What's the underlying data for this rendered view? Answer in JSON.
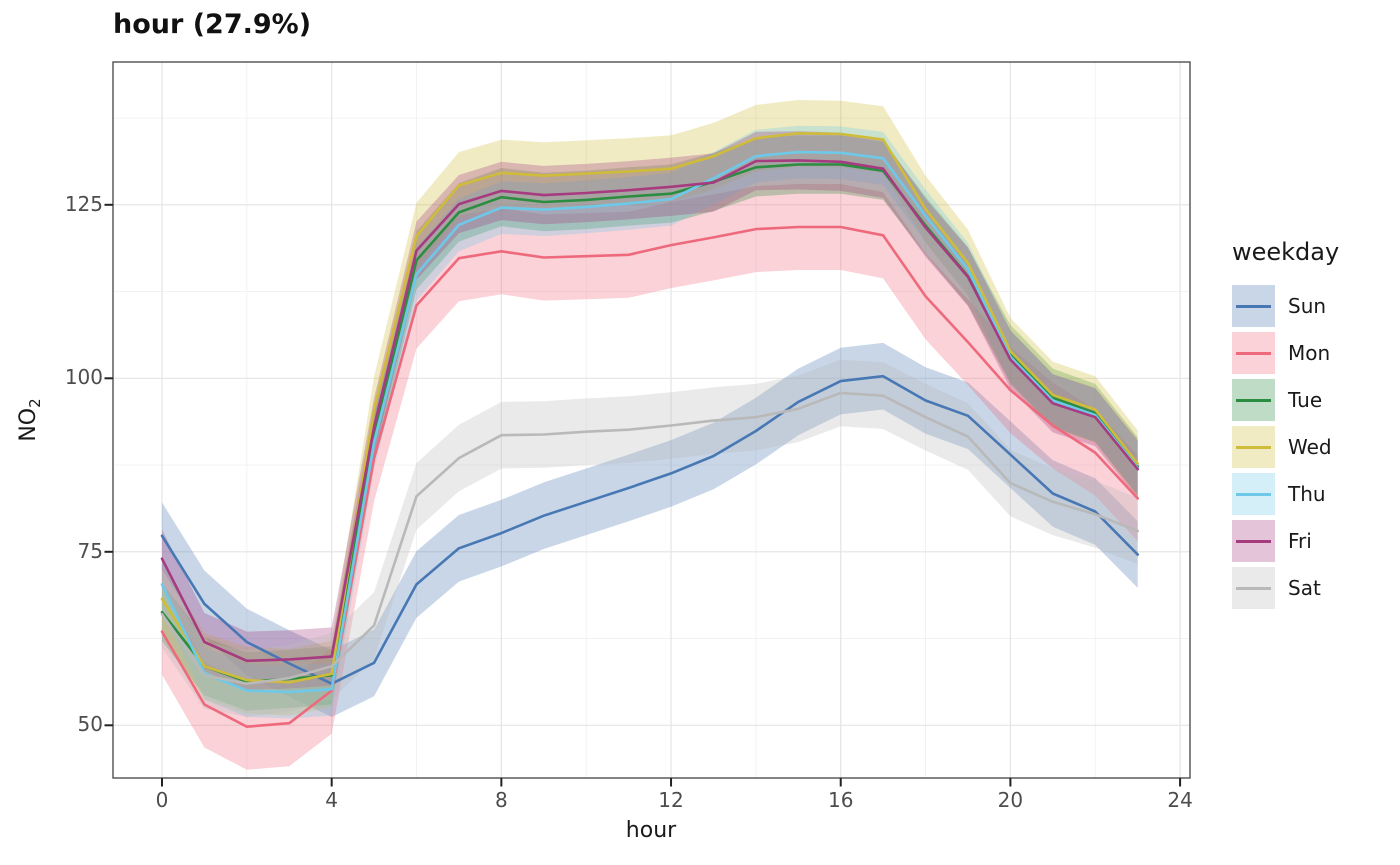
{
  "title": "hour (27.9%)",
  "x_axis": {
    "label": "hour",
    "ticks": [
      0,
      4,
      8,
      12,
      16,
      20,
      24
    ]
  },
  "y_axis": {
    "label": "NO",
    "label_sub": "2",
    "ticks": [
      50,
      75,
      100,
      125
    ]
  },
  "legend": {
    "title": "weekday"
  },
  "chart_data": {
    "type": "line",
    "title": "hour (27.9%)",
    "xlabel": "hour",
    "ylabel": "NO2",
    "xlim": [
      -1.2,
      24.3
    ],
    "ylim": [
      42.4,
      145.6
    ],
    "x_ticks": [
      0,
      4,
      8,
      12,
      16,
      20,
      24
    ],
    "y_ticks": [
      50,
      75,
      100,
      125
    ],
    "grid": "on",
    "legend_position": "right",
    "x": [
      0,
      1,
      2,
      3,
      4,
      5,
      6,
      7,
      8,
      9,
      10,
      11,
      12,
      13,
      14,
      15,
      16,
      17,
      18,
      19,
      20,
      21,
      22,
      23
    ],
    "series": [
      {
        "name": "Sun",
        "color": "#4878b4",
        "fill": "#c8d6e8",
        "band_halfwidth": 4.8,
        "values": [
          77.3,
          67.5,
          62.0,
          58.9,
          56.0,
          59.0,
          70.3,
          75.5,
          77.7,
          80.2,
          82.2,
          84.2,
          86.3,
          88.8,
          92.4,
          96.6,
          99.6,
          100.3,
          96.8,
          94.6,
          89.0,
          83.4,
          80.8,
          74.6
        ]
      },
      {
        "name": "Mon",
        "color": "#ef697d",
        "fill": "#fad2d8",
        "band_halfwidth": 6.2,
        "values": [
          63.5,
          53.0,
          49.8,
          50.3,
          55.0,
          88.5,
          110.5,
          117.3,
          118.3,
          117.4,
          117.6,
          117.8,
          119.2,
          120.3,
          121.5,
          121.8,
          121.8,
          120.6,
          111.8,
          105.2,
          98.3,
          93.2,
          89.3,
          82.7
        ]
      },
      {
        "name": "Tue",
        "color": "#2b8d40",
        "fill": "#bfddc6",
        "band_halfwidth": 4.2,
        "values": [
          66.3,
          58.5,
          56.3,
          56.7,
          57.2,
          92.0,
          117.0,
          123.9,
          126.1,
          125.4,
          125.7,
          126.2,
          126.6,
          128.3,
          130.4,
          130.8,
          130.8,
          129.9,
          122.0,
          114.7,
          103.5,
          97.2,
          95.0,
          87.3
        ]
      },
      {
        "name": "Wed",
        "color": "#cfbc3a",
        "fill": "#f1ebc4",
        "band_halfwidth": 4.8,
        "values": [
          68.2,
          58.5,
          56.5,
          56.2,
          57.4,
          95.5,
          120.5,
          127.8,
          129.6,
          129.2,
          129.5,
          129.8,
          130.2,
          132.0,
          134.6,
          135.3,
          135.2,
          134.4,
          124.4,
          116.6,
          103.9,
          97.6,
          95.5,
          87.7
        ]
      },
      {
        "name": "Thu",
        "color": "#6ec9e9",
        "fill": "#d4eff8",
        "band_halfwidth": 3.8,
        "values": [
          70.3,
          57.5,
          55.0,
          54.8,
          55.2,
          90.8,
          115.0,
          122.1,
          124.6,
          124.3,
          124.7,
          125.2,
          125.8,
          128.8,
          132.0,
          132.6,
          132.5,
          131.7,
          123.4,
          115.7,
          103.1,
          96.8,
          94.7,
          87.1
        ]
      },
      {
        "name": "Fri",
        "color": "#a63b80",
        "fill": "#e4c4d9",
        "band_halfwidth": 4.2,
        "values": [
          74.0,
          62.0,
          59.3,
          59.5,
          59.9,
          93.0,
          118.4,
          125.1,
          127.0,
          126.4,
          126.7,
          127.1,
          127.6,
          128.2,
          131.3,
          131.4,
          131.2,
          130.2,
          121.7,
          114.6,
          102.7,
          96.4,
          94.4,
          86.9
        ]
      },
      {
        "name": "Sat",
        "color": "#b9b9b9",
        "fill": "#eaeaea",
        "band_halfwidth": 4.8,
        "values": [
          66.0,
          57.2,
          56.0,
          56.8,
          58.5,
          64.4,
          83.0,
          88.5,
          91.8,
          91.9,
          92.3,
          92.6,
          93.2,
          93.9,
          94.4,
          95.6,
          97.9,
          97.5,
          94.4,
          91.6,
          84.9,
          82.2,
          80.4,
          78.0
        ]
      }
    ]
  },
  "style": {
    "panel_border": "#4f4f4f",
    "grid_major": "#e4e4e4",
    "grid_minor": "#f1f1f1",
    "tick_mark": "#222222",
    "band_opacity": 0.3
  }
}
